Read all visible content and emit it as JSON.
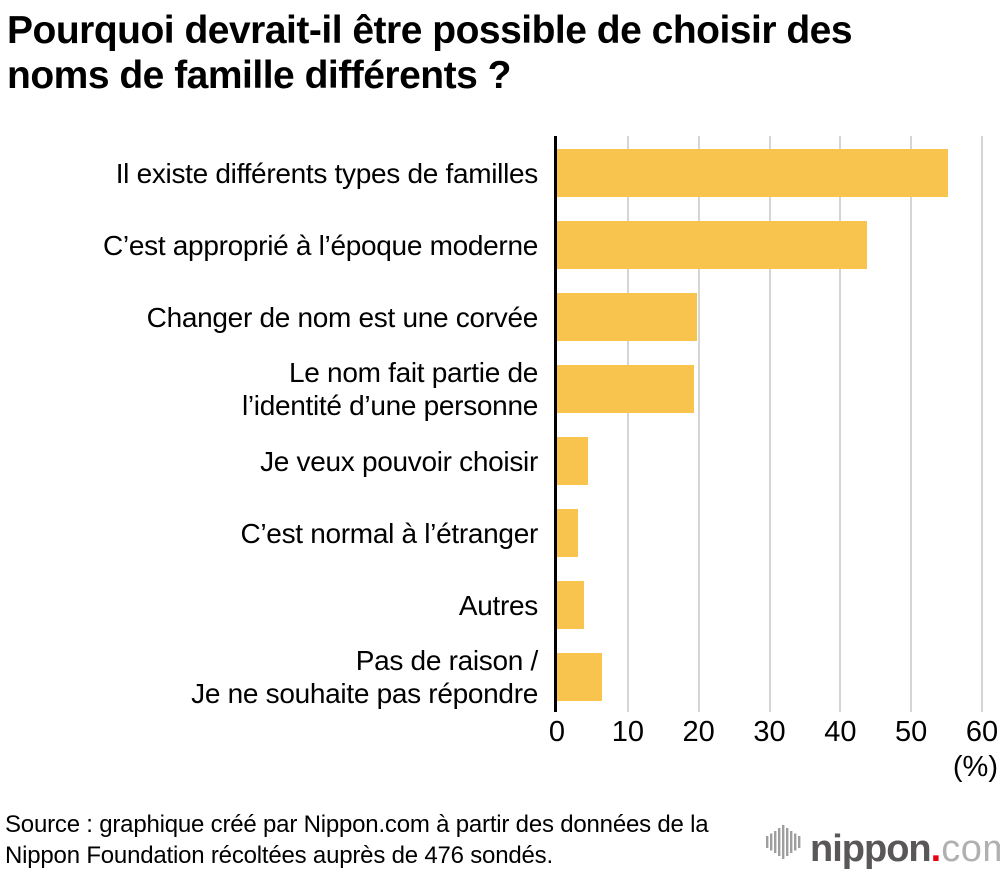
{
  "title": "Pourquoi devrait-il être possible de choisir des\nnoms de famille différents ?",
  "chart_data": {
    "type": "bar",
    "orientation": "horizontal",
    "title": "Pourquoi devrait-il être possible de choisir des noms de famille différents ?",
    "categories": [
      "Il existe différents types de familles",
      "C’est approprié à l’époque moderne",
      "Changer de nom est une corvée",
      "Le nom fait partie de\nl’identité d’une personne",
      "Je veux pouvoir choisir",
      "C’est normal à l’étranger",
      "Autres",
      "Pas de raison /\nJe ne souhaite pas répondre"
    ],
    "values": [
      55.2,
      43.8,
      19.8,
      19.3,
      4.4,
      2.9,
      3.8,
      6.3
    ],
    "unit": "%",
    "xlabel": "(%)",
    "xlim": [
      0,
      60
    ],
    "xticks": [
      0,
      10,
      20,
      30,
      40,
      50,
      60
    ],
    "grid": true,
    "legend_position": "none",
    "bar_color": "#F8C44E",
    "gridline_color": "#D5D5D5",
    "axis_color": "#000000"
  },
  "source_note": "Source : graphique créé par Nippon.com à partir des données de la\nNippon Foundation récoltées auprès de 476 sondés.",
  "logo": {
    "brand": "nippon",
    "dot": ".",
    "tld": "com"
  }
}
